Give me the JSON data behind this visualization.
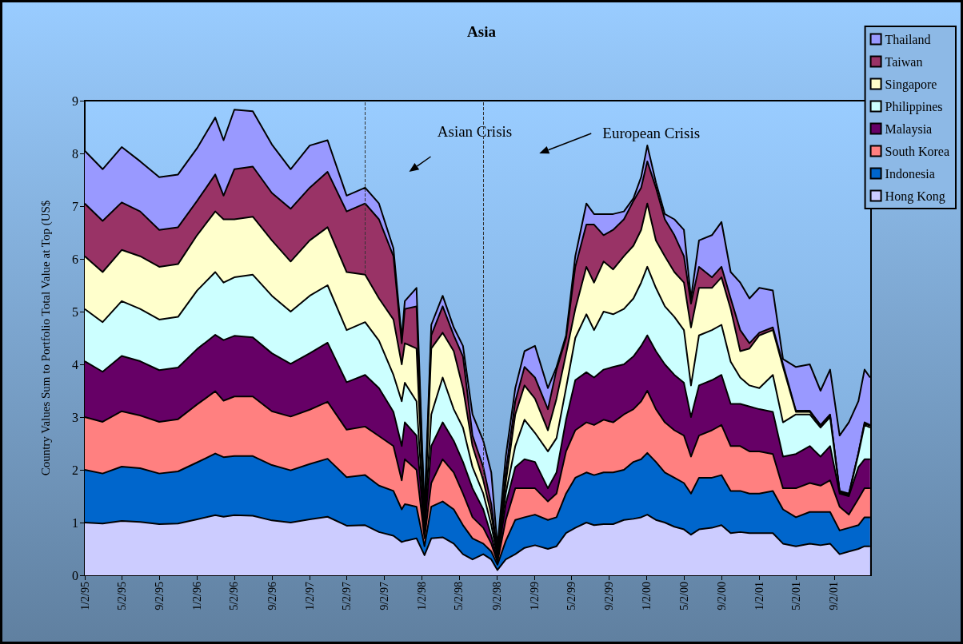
{
  "chart_data": {
    "type": "area",
    "title": "Asia",
    "ylabel": "Country Values Sum to Portfolio Total Value at Top (US$",
    "stacked": true,
    "legend": "top right",
    "marker": "none",
    "grid": false,
    "x": [
      "1995-01-02",
      "1995-03-01",
      "1995-05-02",
      "1995-07-01",
      "1995-09-01",
      "1995-11-01",
      "1996-01-02",
      "1996-03-01",
      "1996-03-28",
      "1996-05-02",
      "1996-07-01",
      "1996-09-01",
      "1996-11-01",
      "1997-01-02",
      "1997-03-01",
      "1997-05-02",
      "1997-07-01",
      "1997-08-15",
      "1997-10-01",
      "1997-10-28",
      "1997-11-07",
      "1997-12-15",
      "1998-01-10",
      "1998-02-01",
      "1998-03-10",
      "1998-04-15",
      "1998-05-15",
      "1998-06-15",
      "1998-07-20",
      "1998-08-15",
      "1998-09-04",
      "1998-10-01",
      "1998-11-01",
      "1998-12-01",
      "1999-01-04",
      "1999-02-15",
      "1999-03-15",
      "1999-04-15",
      "1999-05-15",
      "1999-06-20",
      "1999-07-15",
      "1999-08-15",
      "1999-09-15",
      "1999-10-20",
      "1999-11-20",
      "1999-12-15",
      "2000-01-04",
      "2000-02-01",
      "2000-03-01",
      "2000-04-01",
      "2000-05-02",
      "2000-05-25",
      "2000-06-20",
      "2000-08-01",
      "2000-09-01",
      "2000-10-01",
      "2000-11-01",
      "2000-12-01",
      "2001-01-02",
      "2001-02-15",
      "2001-03-20",
      "2001-05-01",
      "2001-06-15",
      "2001-07-20",
      "2001-08-20",
      "2001-09-20",
      "2001-10-20",
      "2001-11-20",
      "2001-12-10",
      "2001-12-28"
    ],
    "series": [
      {
        "name": "Hong Kong",
        "color": "#ccccff",
        "values": [
          1.0,
          0.98,
          1.03,
          1.01,
          0.97,
          0.98,
          1.06,
          1.14,
          1.11,
          1.14,
          1.13,
          1.04,
          1.0,
          1.06,
          1.11,
          0.94,
          0.95,
          0.82,
          0.75,
          0.63,
          0.65,
          0.7,
          0.38,
          0.7,
          0.72,
          0.6,
          0.4,
          0.3,
          0.4,
          0.3,
          0.1,
          0.3,
          0.4,
          0.52,
          0.57,
          0.5,
          0.55,
          0.8,
          0.9,
          1.0,
          0.95,
          0.97,
          0.97,
          1.05,
          1.07,
          1.1,
          1.15,
          1.05,
          1.0,
          0.92,
          0.87,
          0.77,
          0.87,
          0.9,
          0.95,
          0.8,
          0.82,
          0.8,
          0.8,
          0.8,
          0.6,
          0.55,
          0.6,
          0.57,
          0.6,
          0.4,
          0.45,
          0.5,
          0.55,
          0.55
        ]
      },
      {
        "name": "Indonesia",
        "color": "#0066cc",
        "values": [
          1.0,
          0.95,
          1.03,
          1.02,
          0.96,
          0.99,
          1.08,
          1.17,
          1.13,
          1.12,
          1.13,
          1.05,
          0.99,
          1.05,
          1.1,
          0.92,
          0.95,
          0.88,
          0.85,
          0.62,
          0.7,
          0.6,
          0.17,
          0.6,
          0.68,
          0.65,
          0.55,
          0.4,
          0.2,
          0.15,
          0.1,
          0.35,
          0.65,
          0.58,
          0.58,
          0.55,
          0.55,
          0.75,
          0.95,
          0.95,
          0.95,
          0.98,
          0.98,
          0.95,
          1.08,
          1.1,
          1.17,
          1.1,
          0.95,
          0.93,
          0.88,
          0.78,
          0.98,
          0.95,
          0.95,
          0.8,
          0.78,
          0.75,
          0.75,
          0.8,
          0.65,
          0.55,
          0.6,
          0.63,
          0.6,
          0.45,
          0.45,
          0.45,
          0.55,
          0.55
        ]
      },
      {
        "name": "South Korea",
        "color": "#ff8080",
        "values": [
          1.0,
          0.98,
          1.05,
          1.0,
          0.98,
          0.99,
          1.1,
          1.18,
          1.07,
          1.13,
          1.13,
          1.02,
          1.02,
          1.03,
          1.08,
          0.9,
          0.92,
          0.94,
          0.85,
          0.55,
          0.85,
          0.7,
          0.15,
          0.45,
          0.8,
          0.7,
          0.6,
          0.4,
          0.3,
          0.15,
          0.05,
          0.4,
          0.6,
          0.55,
          0.5,
          0.35,
          0.45,
          0.8,
          0.9,
          0.95,
          0.95,
          1.0,
          0.95,
          1.05,
          1.0,
          1.1,
          1.18,
          1.0,
          0.95,
          0.9,
          0.9,
          0.7,
          0.8,
          0.9,
          0.95,
          0.85,
          0.85,
          0.8,
          0.8,
          0.7,
          0.4,
          0.55,
          0.55,
          0.5,
          0.6,
          0.45,
          0.25,
          0.5,
          0.55,
          0.55
        ]
      },
      {
        "name": "Malaysia",
        "color": "#660066",
        "values": [
          1.06,
          0.95,
          1.05,
          1.03,
          0.98,
          0.98,
          1.05,
          1.07,
          1.15,
          1.15,
          1.12,
          1.1,
          1.0,
          1.07,
          1.12,
          0.9,
          0.98,
          0.91,
          0.65,
          0.65,
          0.7,
          0.65,
          0.1,
          0.7,
          0.7,
          0.6,
          0.6,
          0.55,
          0.35,
          0.15,
          0.05,
          0.3,
          0.4,
          0.55,
          0.5,
          0.25,
          0.4,
          0.6,
          0.95,
          0.95,
          0.9,
          0.95,
          1.05,
          0.95,
          1.0,
          1.05,
          1.05,
          1.1,
          1.1,
          1.05,
          1.0,
          0.75,
          0.95,
          0.95,
          0.95,
          0.8,
          0.8,
          0.85,
          0.8,
          0.8,
          0.6,
          0.65,
          0.7,
          0.55,
          0.65,
          0.25,
          0.35,
          0.6,
          0.55,
          0.55
        ]
      },
      {
        "name": "Philippines",
        "color": "#ccffff",
        "values": [
          0.99,
          0.94,
          1.04,
          0.99,
          0.96,
          0.96,
          1.11,
          1.19,
          1.09,
          1.11,
          1.19,
          1.09,
          0.99,
          1.09,
          1.09,
          0.99,
          1.0,
          0.9,
          0.7,
          0.85,
          0.75,
          0.65,
          0.1,
          0.6,
          0.85,
          0.6,
          0.65,
          0.4,
          0.3,
          0.2,
          0.05,
          0.2,
          0.4,
          0.75,
          0.55,
          0.7,
          0.65,
          0.6,
          0.8,
          1.1,
          0.9,
          1.1,
          1.0,
          1.05,
          1.1,
          1.2,
          1.3,
          1.2,
          1.1,
          1.1,
          1.0,
          0.6,
          0.95,
          0.95,
          0.95,
          0.8,
          0.5,
          0.4,
          0.4,
          0.7,
          0.65,
          0.75,
          0.6,
          0.55,
          0.55,
          0.02,
          0.02,
          0.25,
          0.65,
          0.6
        ]
      },
      {
        "name": "Singapore",
        "color": "#ffffcc",
        "values": [
          1.0,
          0.95,
          0.97,
          1.0,
          1.0,
          1.0,
          1.05,
          1.15,
          1.2,
          1.1,
          1.1,
          1.05,
          0.95,
          1.05,
          1.1,
          1.1,
          0.9,
          0.8,
          1.05,
          0.7,
          0.75,
          1.0,
          0.1,
          1.25,
          0.85,
          1.1,
          0.75,
          0.4,
          0.25,
          0.2,
          0.05,
          0.2,
          0.6,
          0.65,
          0.65,
          0.4,
          0.75,
          0.65,
          0.55,
          0.9,
          0.9,
          0.95,
          0.85,
          1.0,
          1.0,
          1.0,
          1.2,
          0.9,
          0.95,
          0.85,
          0.9,
          1.1,
          0.9,
          0.8,
          0.9,
          1.0,
          0.5,
          0.7,
          1.0,
          0.85,
          1.05,
          0.05,
          0.05,
          0.03,
          0.03,
          0.02,
          0.01,
          0.01,
          0.03,
          0.03
        ]
      },
      {
        "name": "Taiwan",
        "color": "#993366",
        "values": [
          1.0,
          0.97,
          0.9,
          0.85,
          0.7,
          0.7,
          0.65,
          0.7,
          0.45,
          0.95,
          0.95,
          0.9,
          1.0,
          1.0,
          1.05,
          1.15,
          1.35,
          1.5,
          1.2,
          0.4,
          0.65,
          0.8,
          0.1,
          0.25,
          0.5,
          0.3,
          0.6,
          0.2,
          0.25,
          0.2,
          0.05,
          0.2,
          0.25,
          0.35,
          0.4,
          0.4,
          0.55,
          0.3,
          0.8,
          0.8,
          1.1,
          0.5,
          0.75,
          0.7,
          0.85,
          0.8,
          0.8,
          1.0,
          0.7,
          0.7,
          0.5,
          0.45,
          0.4,
          0.2,
          0.2,
          0.2,
          0.4,
          0.1,
          0.05,
          0.05,
          0.05,
          0.02,
          0.02,
          0.02,
          0.02,
          0.01,
          0.02,
          0.01,
          0.02,
          0.02
        ]
      },
      {
        "name": "Thailand",
        "color": "#9999ff",
        "values": [
          1.0,
          0.98,
          1.05,
          0.95,
          1.0,
          1.0,
          1.0,
          1.08,
          1.05,
          1.13,
          1.05,
          0.92,
          0.75,
          0.8,
          0.6,
          0.3,
          0.3,
          0.3,
          0.15,
          0.1,
          0.15,
          0.35,
          0.1,
          0.2,
          0.2,
          0.15,
          0.2,
          0.4,
          0.5,
          0.6,
          0.1,
          0.3,
          0.25,
          0.3,
          0.6,
          0.4,
          0.05,
          0.05,
          0.2,
          0.4,
          0.2,
          0.4,
          0.3,
          0.15,
          0.05,
          0.2,
          0.3,
          0.1,
          0.1,
          0.3,
          0.5,
          0.1,
          0.5,
          0.8,
          0.85,
          0.5,
          0.9,
          0.85,
          0.85,
          0.7,
          0.1,
          0.83,
          0.88,
          0.65,
          0.85,
          1.05,
          1.35,
          0.98,
          1.0,
          0.9
        ]
      }
    ],
    "xlim": [
      "1995-01-02",
      "2001-12-31"
    ],
    "xticks": [
      {
        "value": "1995-01-02",
        "label": "1/2/95"
      },
      {
        "value": "1995-05-02",
        "label": "5/2/95"
      },
      {
        "value": "1995-09-02",
        "label": "9/2/95"
      },
      {
        "value": "1996-01-02",
        "label": "1/2/96"
      },
      {
        "value": "1996-05-02",
        "label": "5/2/96"
      },
      {
        "value": "1996-09-02",
        "label": "9/2/96"
      },
      {
        "value": "1997-01-02",
        "label": "1/2/97"
      },
      {
        "value": "1997-05-02",
        "label": "5/2/97"
      },
      {
        "value": "1997-09-02",
        "label": "9/2/97"
      },
      {
        "value": "1998-01-02",
        "label": "1/2/98"
      },
      {
        "value": "1998-05-02",
        "label": "5/2/98"
      },
      {
        "value": "1998-09-02",
        "label": "9/2/98"
      },
      {
        "value": "1999-01-02",
        "label": "1/2/99"
      },
      {
        "value": "1999-05-02",
        "label": "5/2/99"
      },
      {
        "value": "1999-09-02",
        "label": "9/2/99"
      },
      {
        "value": "2000-01-02",
        "label": "1/2/00"
      },
      {
        "value": "2000-05-02",
        "label": "5/2/00"
      },
      {
        "value": "2000-09-02",
        "label": "9/2/00"
      },
      {
        "value": "2001-01-02",
        "label": "1/2/01"
      },
      {
        "value": "2001-05-02",
        "label": "5/2/01"
      },
      {
        "value": "2001-09-02",
        "label": "9/2/01"
      }
    ],
    "ylim": [
      0,
      9
    ],
    "yticks": [
      0,
      1,
      2,
      3,
      4,
      5,
      6,
      7,
      8,
      9
    ],
    "annotations": [
      "Asian Crisis",
      "European Crisis"
    ],
    "ref_lines": [
      {
        "axis": "x",
        "value": "1997-07-01",
        "line_style": "dashed",
        "color": "#333333"
      },
      {
        "axis": "x",
        "value": "1998-07-20",
        "line_style": "dashed",
        "color": "#333333"
      }
    ]
  }
}
